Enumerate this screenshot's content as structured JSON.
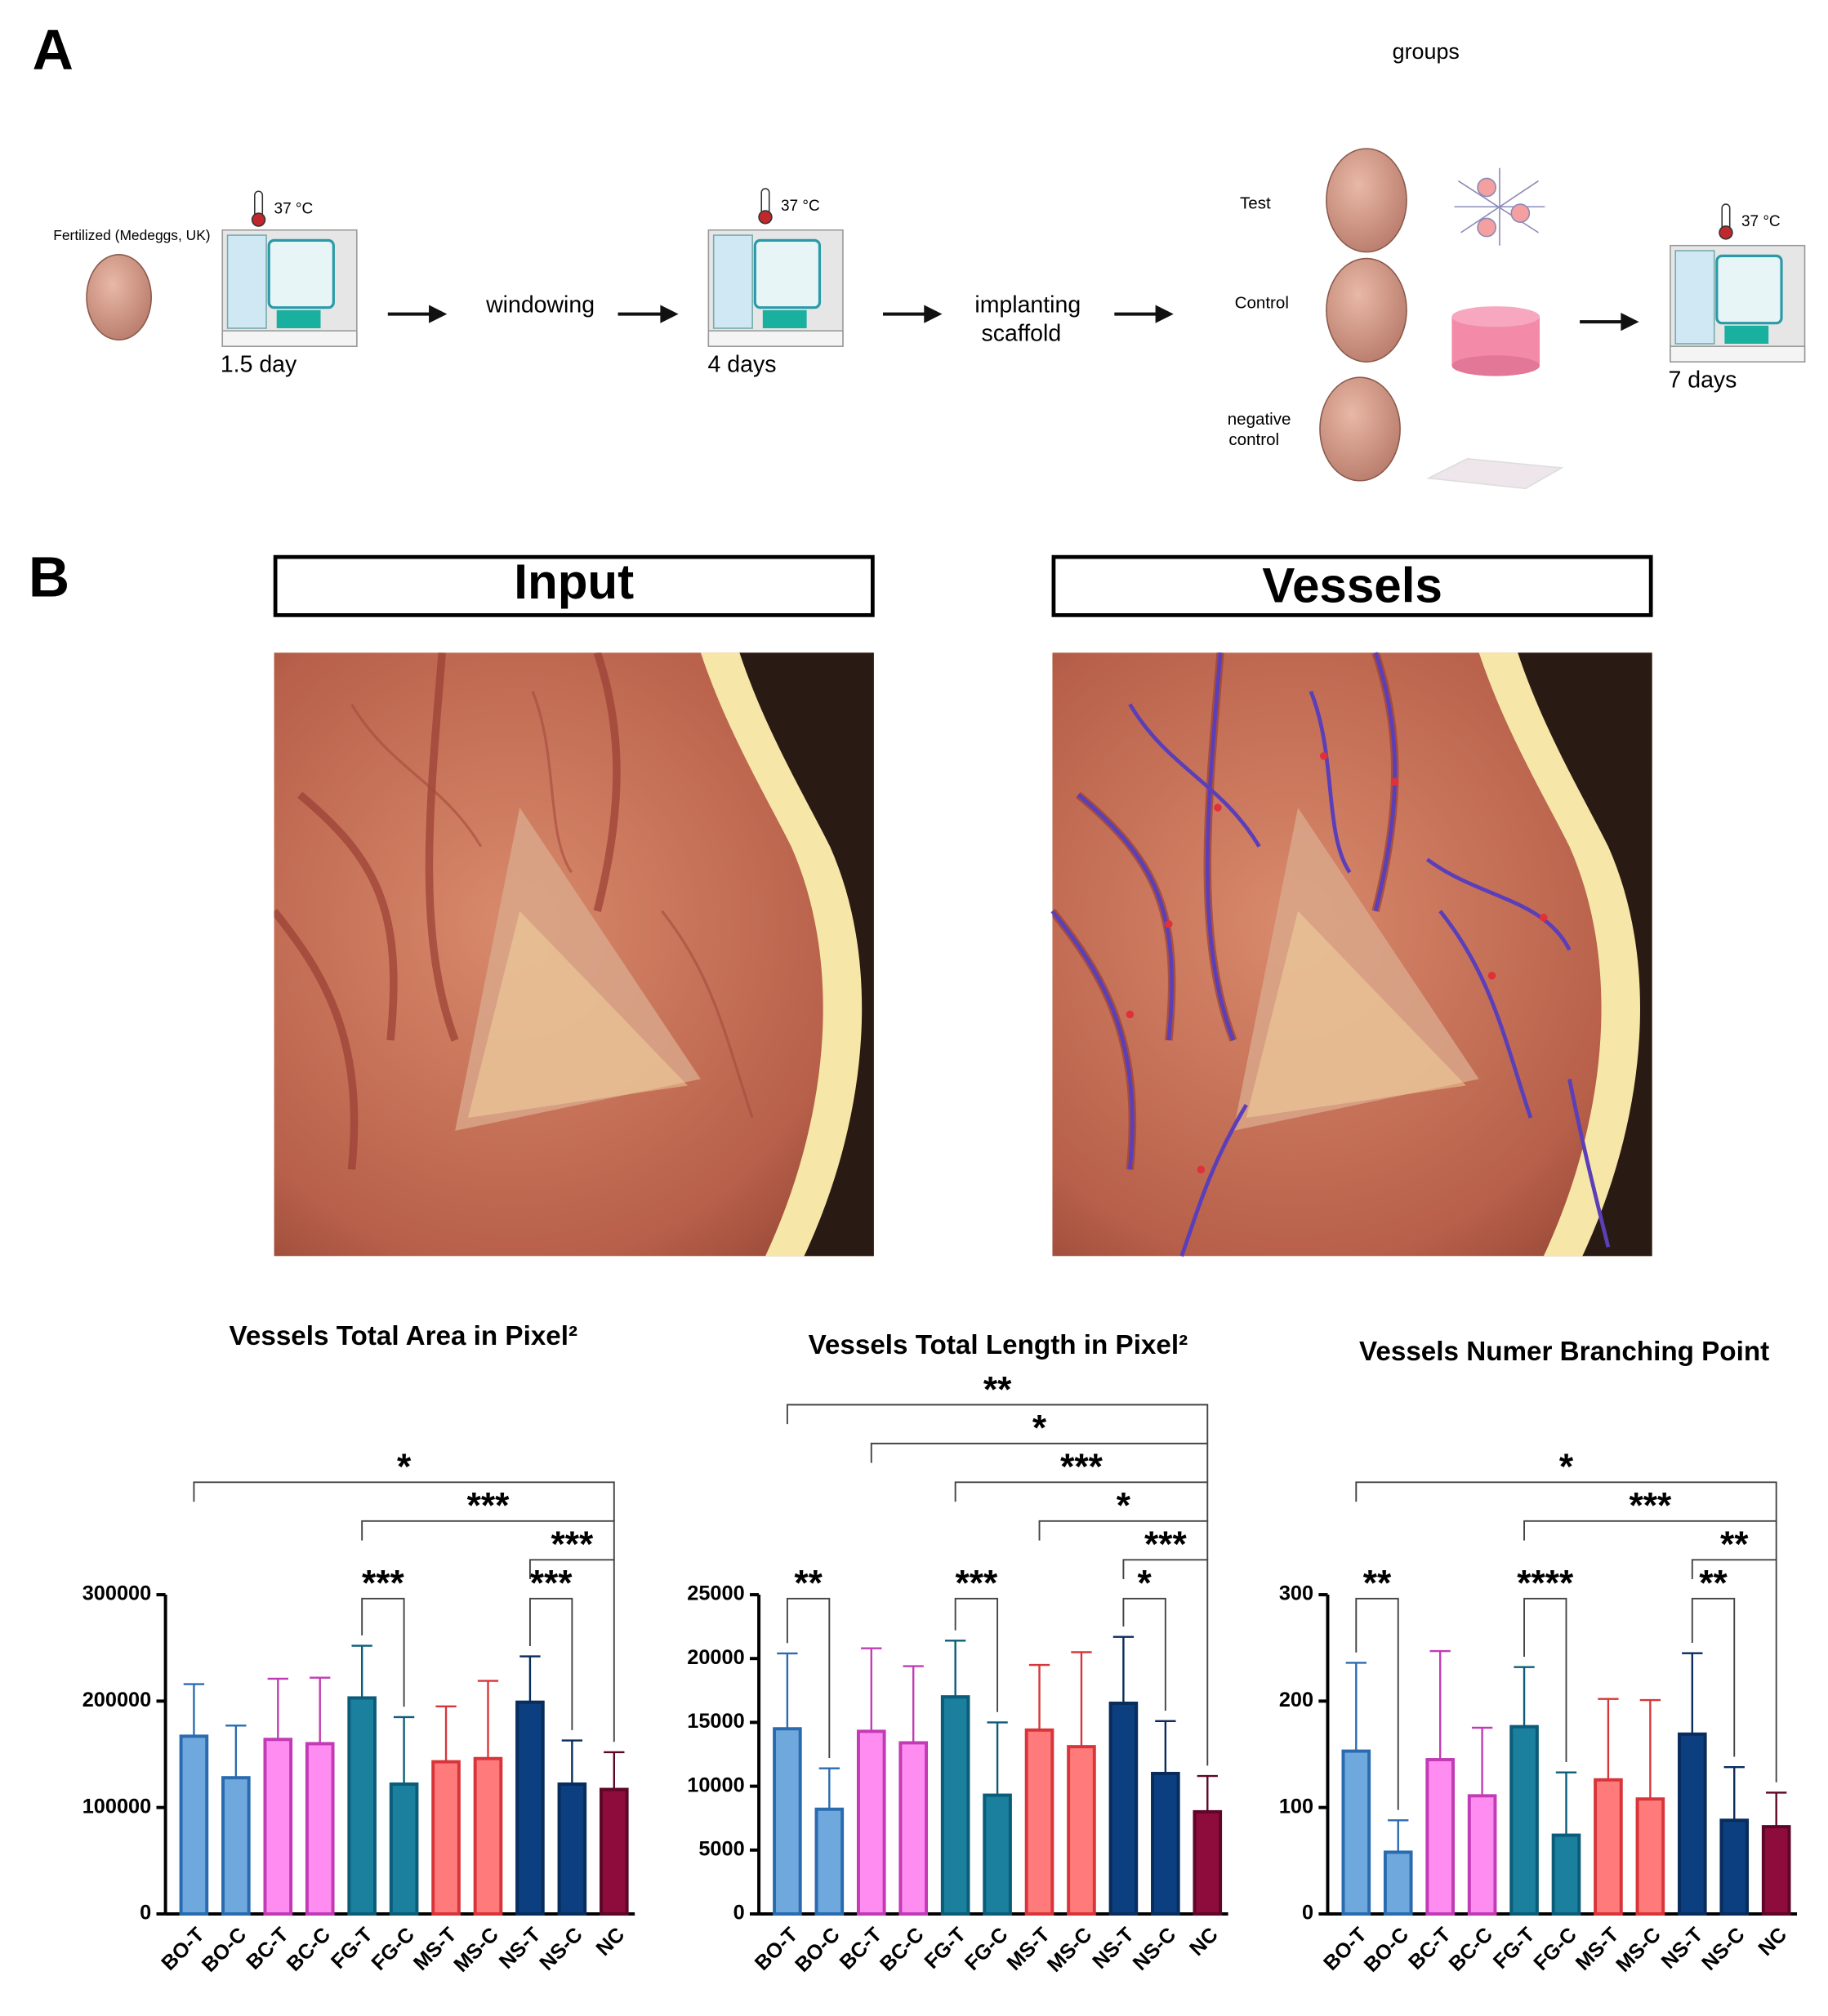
{
  "panel_a": {
    "label": "A",
    "groups": "groups",
    "egg": "Fertilized (Medeggs, UK)",
    "incubators": [
      {
        "temp": "37 °C",
        "time": "1.5 day"
      },
      {
        "temp": "37 °C",
        "time": "4 days"
      },
      {
        "temp": "37 °C",
        "time": "7 days"
      }
    ],
    "windowing": "windowing",
    "implanting": [
      "implanting",
      "scaffold"
    ],
    "group_labels": [
      [
        "Test"
      ],
      [
        "Control"
      ],
      [
        "negative",
        "control"
      ]
    ]
  },
  "panel_b": {
    "label": "B",
    "input": "Input",
    "vessels": "Vessels"
  },
  "chart_data": [
    {
      "type": "bar",
      "title": "Vessels Total Area in Pixel²",
      "categories": [
        "BO-T",
        "BO-C",
        "BC-T",
        "BC-C",
        "FG-T",
        "FG-C",
        "MS-T",
        "MS-C",
        "NS-T",
        "NS-C",
        "NC"
      ],
      "values": [
        167000,
        128000,
        164000,
        160000,
        203000,
        122000,
        143000,
        146000,
        199000,
        122000,
        117000
      ],
      "errors": [
        49000,
        49000,
        57000,
        62000,
        49000,
        63000,
        52000,
        73000,
        43000,
        41000,
        35000
      ],
      "colors": [
        "#6fa8dc",
        "#6fa8dc",
        "#ff8cf0",
        "#ff8cf0",
        "#1b7f9e",
        "#1b7f9e",
        "#ff7b7b",
        "#ff7b7b",
        "#0b3f80",
        "#0b3f80",
        "#8e0c3c"
      ],
      "edge_colors": [
        "#2a6bb0",
        "#2a6bb0",
        "#c23bb5",
        "#c23bb5",
        "#0b5c78",
        "#0b5c78",
        "#d8353a",
        "#d8353a",
        "#082c5c",
        "#082c5c",
        "#5e0627"
      ],
      "ylim": [
        0,
        300000
      ],
      "yticks": [
        0,
        100000,
        200000,
        300000
      ],
      "significance": [
        {
          "from": "BO-T",
          "to": "NC",
          "label": "*"
        },
        {
          "from": "FG-T",
          "to": "NC",
          "label": "***"
        },
        {
          "from": "NS-T",
          "to": "NC",
          "label": "***"
        },
        {
          "from": "FG-T",
          "to": "FG-C",
          "label": "***"
        },
        {
          "from": "NS-T",
          "to": "NS-C",
          "label": "***"
        }
      ]
    },
    {
      "type": "bar",
      "title": "Vessels Total Length in Pixel²",
      "categories": [
        "BO-T",
        "BO-C",
        "BC-T",
        "BC-C",
        "FG-T",
        "FG-C",
        "MS-T",
        "MS-C",
        "NS-T",
        "NS-C",
        "NC"
      ],
      "values": [
        14500,
        8200,
        14300,
        13400,
        17000,
        9300,
        14400,
        13100,
        16500,
        11000,
        8000
      ],
      "errors": [
        5900,
        3200,
        6500,
        6000,
        4400,
        5700,
        5100,
        7400,
        5200,
        4100,
        2800
      ],
      "colors": [
        "#6fa8dc",
        "#6fa8dc",
        "#ff8cf0",
        "#ff8cf0",
        "#1b7f9e",
        "#1b7f9e",
        "#ff7b7b",
        "#ff7b7b",
        "#0b3f80",
        "#0b3f80",
        "#8e0c3c"
      ],
      "edge_colors": [
        "#2a6bb0",
        "#2a6bb0",
        "#c23bb5",
        "#c23bb5",
        "#0b5c78",
        "#0b5c78",
        "#d8353a",
        "#d8353a",
        "#082c5c",
        "#082c5c",
        "#5e0627"
      ],
      "ylim": [
        0,
        25000
      ],
      "yticks": [
        0,
        5000,
        10000,
        15000,
        20000,
        25000
      ],
      "significance": [
        {
          "from": "BO-T",
          "to": "NC",
          "label": "**"
        },
        {
          "from": "BC-T",
          "to": "NC",
          "label": "*"
        },
        {
          "from": "FG-T",
          "to": "NC",
          "label": "***"
        },
        {
          "from": "MS-T",
          "to": "NC",
          "label": "*"
        },
        {
          "from": "NS-T",
          "to": "NC",
          "label": "***"
        },
        {
          "from": "BO-T",
          "to": "BO-C",
          "label": "**"
        },
        {
          "from": "FG-T",
          "to": "FG-C",
          "label": "***"
        },
        {
          "from": "NS-T",
          "to": "NS-C",
          "label": "*"
        }
      ]
    },
    {
      "type": "bar",
      "title": "Vessels Numer Branching Point",
      "categories": [
        "BO-T",
        "BO-C",
        "BC-T",
        "BC-C",
        "FG-T",
        "FG-C",
        "MS-T",
        "MS-C",
        "NS-T",
        "NS-C",
        "NC"
      ],
      "values": [
        153,
        58,
        145,
        111,
        176,
        74,
        126,
        108,
        169,
        88,
        82
      ],
      "errors": [
        83,
        30,
        102,
        64,
        56,
        59,
        76,
        93,
        76,
        50,
        32
      ],
      "colors": [
        "#6fa8dc",
        "#6fa8dc",
        "#ff8cf0",
        "#ff8cf0",
        "#1b7f9e",
        "#1b7f9e",
        "#ff7b7b",
        "#ff7b7b",
        "#0b3f80",
        "#0b3f80",
        "#8e0c3c"
      ],
      "edge_colors": [
        "#2a6bb0",
        "#2a6bb0",
        "#c23bb5",
        "#c23bb5",
        "#0b5c78",
        "#0b5c78",
        "#d8353a",
        "#d8353a",
        "#082c5c",
        "#082c5c",
        "#5e0627"
      ],
      "ylim": [
        0,
        300
      ],
      "yticks": [
        0,
        100,
        200,
        300
      ],
      "significance": [
        {
          "from": "BO-T",
          "to": "NC",
          "label": "*"
        },
        {
          "from": "FG-T",
          "to": "NC",
          "label": "***"
        },
        {
          "from": "NS-T",
          "to": "NC",
          "label": "**"
        },
        {
          "from": "BO-T",
          "to": "BO-C",
          "label": "**"
        },
        {
          "from": "FG-T",
          "to": "FG-C",
          "label": "****"
        },
        {
          "from": "NS-T",
          "to": "NS-C",
          "label": "**"
        }
      ]
    }
  ]
}
